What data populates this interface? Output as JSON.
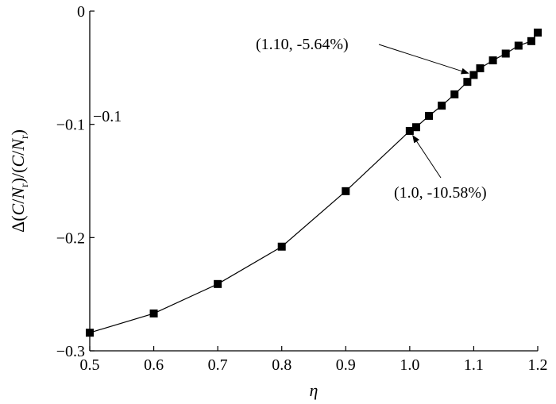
{
  "chart_data": {
    "type": "line",
    "xlabel": "η",
    "ylabel": {
      "prefix": "Δ(",
      "var1": "C",
      "sep1": "/",
      "var2": "N",
      "sub1": "r",
      "mid": ")/(",
      "var3": "C",
      "sep2": "/",
      "var4": "N",
      "sub2": "r",
      "suffix": ")"
    },
    "xlim": [
      0.5,
      1.2
    ],
    "ylim": [
      -0.3,
      0
    ],
    "x_ticks": [
      {
        "value": 0.5,
        "label": "0.5"
      },
      {
        "value": 0.6,
        "label": "0.6"
      },
      {
        "value": 0.7,
        "label": "0.7"
      },
      {
        "value": 0.8,
        "label": "0.8"
      },
      {
        "value": 0.9,
        "label": "0.9"
      },
      {
        "value": 1.0,
        "label": "1.0"
      },
      {
        "value": 1.1,
        "label": "1.1"
      },
      {
        "value": 1.2,
        "label": "1.2"
      }
    ],
    "y_ticks": [
      {
        "value": 0,
        "label": "0"
      },
      {
        "value": -0.1,
        "label": "−0.1"
      },
      {
        "value": -0.2,
        "label": "−0.2"
      },
      {
        "value": -0.3,
        "label": "−0.3"
      }
    ],
    "stray_text": "−0.1",
    "series": [
      {
        "marker": "square",
        "color": "#000000",
        "x": [
          0.5,
          0.6,
          0.7,
          0.8,
          0.9,
          1.0,
          1.01,
          1.03,
          1.05,
          1.07,
          1.09,
          1.1,
          1.11,
          1.13,
          1.15,
          1.17,
          1.19,
          1.2
        ],
        "y": [
          -0.284,
          -0.267,
          -0.241,
          -0.208,
          -0.159,
          -0.1058,
          -0.1025,
          -0.0925,
          -0.0835,
          -0.0735,
          -0.0625,
          -0.0564,
          -0.0505,
          -0.0435,
          -0.0375,
          -0.0305,
          -0.0265,
          -0.019
        ]
      }
    ],
    "annotations": [
      {
        "text": "(1.10, -5.64%)",
        "point": [
          1.1,
          -0.0564
        ]
      },
      {
        "text": "(1.0, -10.58%)",
        "point": [
          1.0,
          -0.1058
        ]
      }
    ],
    "grid": false,
    "legend": false
  }
}
